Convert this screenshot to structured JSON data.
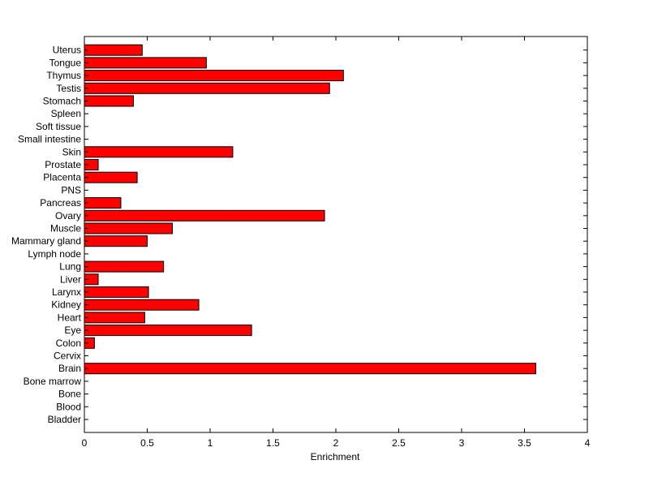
{
  "chart_data": {
    "type": "bar",
    "orientation": "horizontal",
    "categories": [
      "Bladder",
      "Blood",
      "Bone",
      "Bone marrow",
      "Brain",
      "Cervix",
      "Colon",
      "Eye",
      "Heart",
      "Kidney",
      "Larynx",
      "Liver",
      "Lung",
      "Lymph node",
      "Mammary gland",
      "Muscle",
      "Ovary",
      "Pancreas",
      "PNS",
      "Placenta",
      "Prostate",
      "Skin",
      "Small intestine",
      "Soft tissue",
      "Spleen",
      "Stomach",
      "Testis",
      "Thymus",
      "Tongue",
      "Uterus"
    ],
    "values": [
      0,
      0,
      0,
      0,
      3.59,
      0,
      0.08,
      1.33,
      0.48,
      0.91,
      0.51,
      0.11,
      0.63,
      0,
      0.5,
      0.7,
      1.91,
      0.29,
      0,
      0.42,
      0.11,
      1.18,
      0,
      0,
      0,
      0.39,
      1.95,
      2.06,
      0.97,
      0.46
    ],
    "xlabel": "Enrichment",
    "ylabel": "",
    "title": "",
    "xlim": [
      0,
      4
    ],
    "xticks": [
      "0",
      "0.5",
      "1",
      "1.5",
      "2",
      "2.5",
      "3",
      "3.5",
      "4"
    ],
    "bar_color": "#ff0000",
    "grid": false
  }
}
